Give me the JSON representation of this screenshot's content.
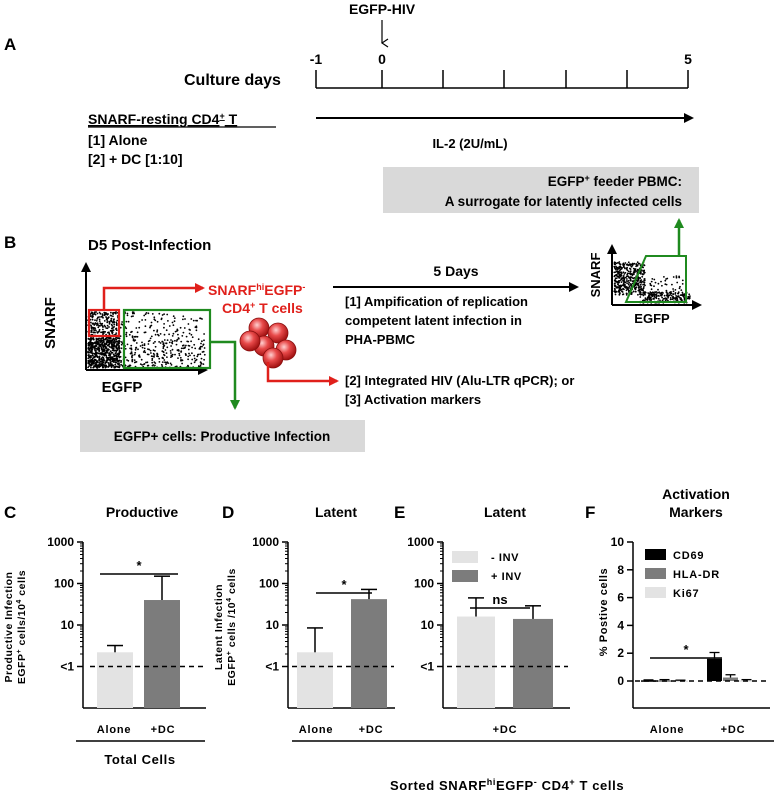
{
  "panel_letters": {
    "a": "A",
    "b": "B",
    "c": "C",
    "d": "D",
    "e": "E",
    "f": "F"
  },
  "panel_a": {
    "infection_label": "EGFP-HIV",
    "culture_days_label": "Culture days",
    "tick_minus1": "-1",
    "tick_0": "0",
    "tick_5": "5",
    "cell_type_title_main": "SNARF-resting CD4",
    "cell_type_title_sup": "+",
    "cell_type_title_tail": " T",
    "condition_1": "[1] Alone",
    "condition_2": "[2] + DC [1:10]",
    "il2_label": "IL-2 (2U/mL)",
    "feeder_line1_main": "EGFP",
    "feeder_line1_sup": "+",
    "feeder_line1_tail": " feeder PBMC:",
    "feeder_line2": "A surrogate for latently infected cells"
  },
  "panel_b": {
    "title": "D5 Post-Infection",
    "y_axis": "SNARF",
    "x_axis": "EGFP",
    "sorted_main": "SNARF",
    "sorted_sup1": "hi",
    "sorted_mid": "EGFP",
    "sorted_sup2": "-",
    "sorted_line2": "CD4",
    "sorted_line2_sup": "+",
    "sorted_line2_tail": " T cells",
    "five_days": "5 Days",
    "step1_l1": "[1] Ampification of replication",
    "step1_l2": "competent latent infection in",
    "step1_l3": "PHA-PBMC",
    "step2": "[2] Integrated HIV (Alu-LTR qPCR); or",
    "step3": "[3] Activation markers",
    "productive_box": "EGFP+ cells: Productive Infection",
    "right_y_axis": "SNARF",
    "right_x_axis": "EGFP"
  },
  "chart_data": [
    {
      "panel": "C",
      "type": "bar",
      "title": "Productive",
      "ylabel_line1": "Productive Infection",
      "ylabel_line2_main": "EGFP",
      "ylabel_line2_sup": "+",
      "ylabel_line2_mid": " cells/10",
      "ylabel_line2_sup2": "4",
      "ylabel_line2_tail": " cells",
      "yscale": "log",
      "yticks": [
        "1000",
        "100",
        "10",
        "<1"
      ],
      "categories": [
        "Alone",
        "+DC"
      ],
      "values": [
        2.2,
        40
      ],
      "errors_upper": [
        3.2,
        150
      ],
      "colors": [
        "#e3e3e3",
        "#7c7c7c"
      ],
      "significance": "*",
      "footer": "Total  Cells"
    },
    {
      "panel": "D",
      "type": "bar",
      "title": "Latent",
      "ylabel_line1": "Latent Infection",
      "ylabel_line2_main": "EGFP",
      "ylabel_line2_sup": "+",
      "ylabel_line2_mid": " cells /10",
      "ylabel_line2_sup2": "4",
      "ylabel_line2_tail": " cells",
      "yscale": "log",
      "yticks": [
        "1000",
        "100",
        "10",
        "<1"
      ],
      "categories": [
        "Alone",
        "+DC"
      ],
      "values": [
        2.2,
        42
      ],
      "errors_upper": [
        8.5,
        72
      ],
      "colors": [
        "#e3e3e3",
        "#7c7c7c"
      ],
      "significance": "*"
    },
    {
      "panel": "E",
      "type": "bar",
      "title": "Latent",
      "yscale": "log",
      "yticks": [
        "1000",
        "100",
        "10",
        "<1"
      ],
      "categories": [
        "+DC"
      ],
      "series": [
        {
          "name": "- INV",
          "values": [
            16
          ],
          "errors_upper": [
            45
          ],
          "color": "#e3e3e3"
        },
        {
          "name": "+ INV",
          "values": [
            14
          ],
          "errors_upper": [
            29
          ],
          "color": "#7c7c7c"
        }
      ],
      "significance": "ns"
    },
    {
      "panel": "F",
      "type": "bar",
      "title_line1": "Activation",
      "title_line2": "Markers",
      "ylabel": "% Postive cells",
      "ylim": [
        0,
        10
      ],
      "yticks": [
        "10",
        "8",
        "6",
        "4",
        "2",
        "0"
      ],
      "categories": [
        "Alone",
        "+DC"
      ],
      "series": [
        {
          "name": "CD69",
          "values": [
            0.05,
            1.6
          ],
          "errors_upper": [
            0.08,
            2.05
          ],
          "color": "#000000"
        },
        {
          "name": "HLA-DR",
          "values": [
            0.05,
            0.25
          ],
          "errors_upper": [
            0.1,
            0.45
          ],
          "color": "#7c7c7c"
        },
        {
          "name": "Ki67",
          "values": [
            0.03,
            0.05
          ],
          "errors_upper": [
            0.06,
            0.1
          ],
          "color": "#e3e3e3"
        }
      ],
      "significance": "*"
    }
  ],
  "bottom": {
    "sorted_main": "Sorted    SNARF",
    "sorted_sup1": "hi",
    "sorted_mid": "EGFP",
    "sorted_sup2": "-",
    "sorted_tail": "  CD4",
    "sorted_sup3": "+",
    "sorted_end": " T cells"
  },
  "colors": {
    "red": "#e0201b",
    "green": "#1f8a1f",
    "gray_box": "#d9d9d9",
    "light_bar": "#e3e3e3",
    "dark_bar": "#7c7c7c"
  }
}
